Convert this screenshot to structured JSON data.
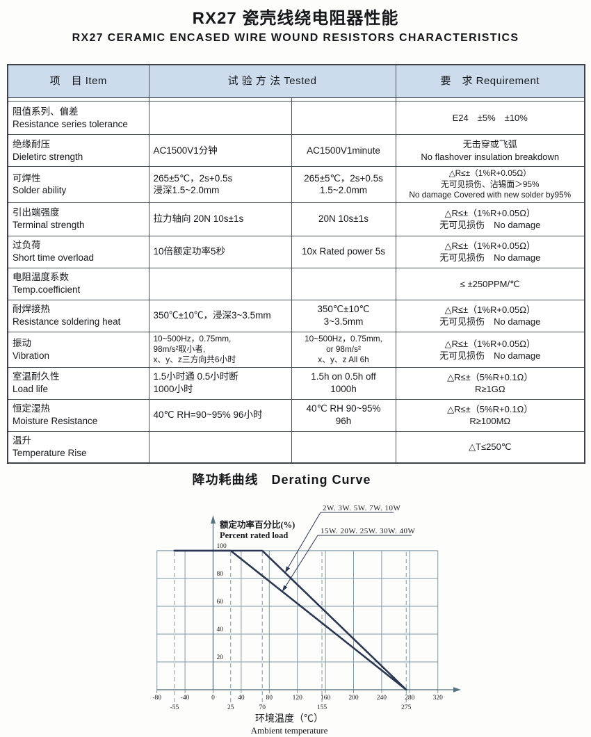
{
  "doc": {
    "title": "RX27 瓷壳线绕电阻器性能",
    "subtitle": "RX27 CERAMIC ENCASED WIRE WOUND RESISTORS CHARACTERISTICS"
  },
  "colors": {
    "header_bg": "#cddcec",
    "table_border": "#4a5058",
    "grid_line": "#7d97a4",
    "axis_line": "#5a7380",
    "curve": "#2a3550",
    "text": "#15171a"
  },
  "table": {
    "header": {
      "item": "项　目  Item",
      "tested": "试 验 方 法  Tested",
      "requirement": "要　求 Requirement"
    },
    "rows": [
      {
        "item": "阻值系列、偏差\nResistance series tolerance",
        "test_cn": "",
        "test_en": "",
        "req": "E24　±5%　±10%"
      },
      {
        "item": "绝缘耐压\nDieletirc  strength",
        "test_cn": "AC1500V1分钟",
        "test_en": "AC1500V1minute",
        "req": "无击穿或飞弧\nNo flashover insulation breakdown"
      },
      {
        "item": "可焊性\nSolder ability",
        "test_cn": "265±5℃，2s+0.5s\n浸深1.5~2.0mm",
        "test_en": "265±5℃，2s+0.5s\n1.5~2.0mm",
        "req": "△R≤±（1%R+0.05Ω）\n无可见损伤、沾锡面＞95%\nNo damage Covered with new solder by95%"
      },
      {
        "item": "引出端强度\nTerminal strength",
        "test_cn": "拉力轴向 20N 10s±1s",
        "test_en": "20N 10s±1s",
        "req": "△R≤±（1%R+0.05Ω）\n无可见损伤　No damage"
      },
      {
        "item": "过负荷\nShort time overload",
        "test_cn": "10倍额定功率5秒",
        "test_en": "10x Rated power  5s",
        "req": "△R≤±（1%R+0.05Ω）\n无可见损伤　No damage"
      },
      {
        "item": "电阻温度系数\nTemp.coefficient",
        "test_cn": "",
        "test_en": "",
        "req": "≤ ±250PPM/℃"
      },
      {
        "item": "耐焊接热\nResistance soldering heat",
        "test_cn": "350℃±10℃，浸深3~3.5mm",
        "test_en": "350℃±10℃\n3~3.5mm",
        "req": "△R≤±（1%R+0.05Ω）\n无可见损伤　No damage"
      },
      {
        "item": "振动\nVibration",
        "test_cn": "10~500Hz，0.75mm,\n98m/s²取小者,\nx、y、z三方向共6小时",
        "test_en": "10~500Hz，0.75mm,\nor 98m/s²\nx、y、z All 6h",
        "req": "△R≤±（1%R+0.05Ω）\n无可见损伤　No damage"
      },
      {
        "item": "室温耐久性\nLoad life",
        "test_cn": "1.5小时通  0.5小时断\n1000小时",
        "test_en": "1.5h on  0.5h off\n1000h",
        "req": "△R≤±（5%R+0.1Ω）\nR≥1GΩ"
      },
      {
        "item": "恒定湿热\nMoisture Resistance",
        "test_cn": "40℃  RH=90~95%  96小时",
        "test_en": "40℃ RH 90~95%\n96h",
        "req": "△R≤±（5%R+0.1Ω）\nR≥100MΩ"
      },
      {
        "item": "温升\nTemperature Rise",
        "test_cn": "",
        "test_en": "",
        "req": "△T≤250℃"
      }
    ]
  },
  "chart": {
    "title": "降功耗曲线　Derating Curve",
    "y_axis_label_cn": "额定功率百分比(%)",
    "y_axis_label_en": "Percent rated load",
    "x_axis_label_cn": "环境温度（℃）",
    "x_axis_label_en": "Ambient temperature"
  },
  "chart_data": {
    "type": "line",
    "title": "降功耗曲线 Derating Curve",
    "xlabel": "环境温度（℃） Ambient temperature",
    "ylabel": "额定功率百分比(%) Percent rated load",
    "xlim": [
      -80,
      320
    ],
    "ylim": [
      0,
      100
    ],
    "grid": true,
    "x_ticks_major": [
      -80,
      -40,
      0,
      40,
      80,
      120,
      160,
      200,
      240,
      280,
      320
    ],
    "x_ticks_secondary": [
      -55,
      25,
      70,
      155,
      275
    ],
    "y_ticks": [
      100,
      80,
      60,
      40,
      20
    ],
    "series": [
      {
        "name": "2W. 3W. 5W. 7W. 10W",
        "points": [
          [
            -55,
            100
          ],
          [
            70,
            100
          ],
          [
            275,
            0
          ]
        ]
      },
      {
        "name": "15W. 20W. 25W. 30W. 40W",
        "points": [
          [
            -55,
            100
          ],
          [
            25,
            100
          ],
          [
            275,
            0
          ]
        ]
      }
    ]
  }
}
